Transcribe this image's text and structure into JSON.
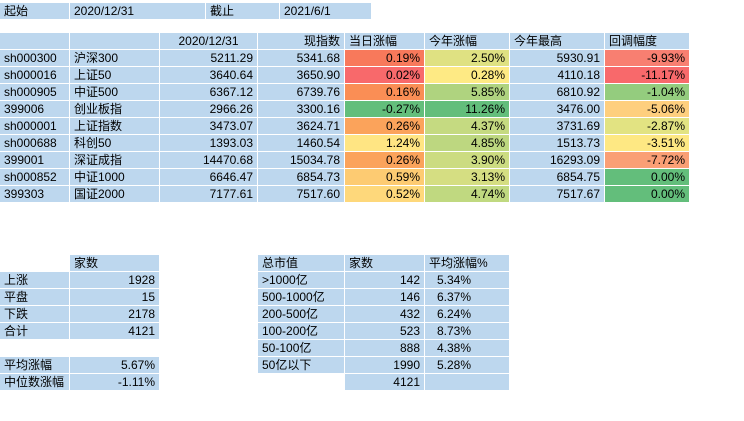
{
  "colors": {
    "cell_blue": "#BDD7EE",
    "heat_red": "#F8696B",
    "heat_yellow": "#FFEB84",
    "heat_green": "#63BE7B"
  },
  "top_bar": {
    "start_label": "起始",
    "start_date": "2020/12/31",
    "end_label": "截止",
    "end_date": "2021/6/1"
  },
  "index_table": {
    "headers": {
      "base_date": "2020/12/31",
      "current": "现指数",
      "day_change": "当日涨幅",
      "ytd_change": "今年涨幅",
      "ytd_high": "今年最高",
      "drawdown": "回调幅度"
    },
    "rows": [
      {
        "code": "sh000300",
        "name": "沪深300",
        "base": "5211.29",
        "current": "5341.68",
        "day": "0.19%",
        "day_bg": "#F8795B",
        "ytd": "2.50%",
        "ytd_bg": "#DFE182",
        "high": "5930.91",
        "dd": "-9.93%",
        "dd_bg": "#F87F71"
      },
      {
        "code": "sh000016",
        "name": "上证50",
        "base": "3640.64",
        "current": "3650.90",
        "day": "0.02%",
        "day_bg": "#F8696B",
        "ytd": "0.28%",
        "ytd_bg": "#FEEA84",
        "high": "4110.18",
        "dd": "-11.17%",
        "dd_bg": "#F8696B"
      },
      {
        "code": "sh000905",
        "name": "中证500",
        "base": "6367.12",
        "current": "6739.76",
        "day": "0.16%",
        "day_bg": "#FA8E55",
        "ytd": "5.85%",
        "ytd_bg": "#AFD37F",
        "high": "6810.92",
        "dd": "-1.04%",
        "dd_bg": "#94CC7E"
      },
      {
        "code": "399006",
        "name": "创业板指",
        "base": "2966.26",
        "current": "3300.16",
        "day": "-0.27%",
        "day_bg": "#63BE7B",
        "ytd": "11.26%",
        "ytd_bg": "#63BE7B",
        "high": "3476.00",
        "dd": "-5.06%",
        "dd_bg": "#FECF7E"
      },
      {
        "code": "sh000001",
        "name": "上证指数",
        "base": "3473.07",
        "current": "3624.71",
        "day": "0.26%",
        "day_bg": "#FBA35B",
        "ytd": "4.37%",
        "ytd_bg": "#C5DA81",
        "high": "3731.69",
        "dd": "-2.87%",
        "dd_bg": "#E2E382"
      },
      {
        "code": "sh000688",
        "name": "科创50",
        "base": "1393.03",
        "current": "1460.54",
        "day": "1.24%",
        "day_bg": "#FFE583",
        "ytd": "4.85%",
        "ytd_bg": "#BDD780",
        "high": "1513.73",
        "dd": "-3.51%",
        "dd_bg": "#FEE883"
      },
      {
        "code": "399001",
        "name": "深证成指",
        "base": "14470.68",
        "current": "15034.78",
        "day": "0.26%",
        "day_bg": "#FBA35B",
        "ytd": "3.90%",
        "ytd_bg": "#CCDC81",
        "high": "16293.09",
        "dd": "-7.72%",
        "dd_bg": "#FA9F75"
      },
      {
        "code": "sh000852",
        "name": "中证1000",
        "base": "6646.47",
        "current": "6854.73",
        "day": "0.59%",
        "day_bg": "#FDCB72",
        "ytd": "3.13%",
        "ytd_bg": "#D5DE82",
        "high": "6854.75",
        "dd": "0.00%",
        "dd_bg": "#63BE7B"
      },
      {
        "code": "399303",
        "name": "国证2000",
        "base": "7177.61",
        "current": "7517.60",
        "day": "0.52%",
        "day_bg": "#FED87B",
        "ytd": "4.74%",
        "ytd_bg": "#C0D980",
        "high": "7517.67",
        "dd": "0.00%",
        "dd_bg": "#63BE7B"
      }
    ]
  },
  "breadth_table": {
    "count_header": "家数",
    "rows": [
      {
        "label": "上涨",
        "value": "1928"
      },
      {
        "label": "平盘",
        "value": "15"
      },
      {
        "label": "下跌",
        "value": "2178"
      },
      {
        "label": "合计",
        "value": "4121"
      }
    ],
    "stats": [
      {
        "label": "平均涨幅",
        "value": "5.67%"
      },
      {
        "label": "中位数涨幅",
        "value": "-1.11%"
      }
    ]
  },
  "cap_table": {
    "headers": {
      "cap": "总市值",
      "count": "家数",
      "avg": "平均涨幅%"
    },
    "rows": [
      {
        "cap": ">1000亿",
        "count": "142",
        "avg": "5.34%"
      },
      {
        "cap": "500-1000亿",
        "count": "146",
        "avg": "6.37%"
      },
      {
        "cap": "200-500亿",
        "count": "432",
        "avg": "6.24%"
      },
      {
        "cap": "100-200亿",
        "count": "523",
        "avg": "8.73%"
      },
      {
        "cap": "50-100亿",
        "count": "888",
        "avg": "4.38%"
      },
      {
        "cap": "50亿以下",
        "count": "1990",
        "avg": "5.28%"
      }
    ],
    "total_count": "4121"
  }
}
